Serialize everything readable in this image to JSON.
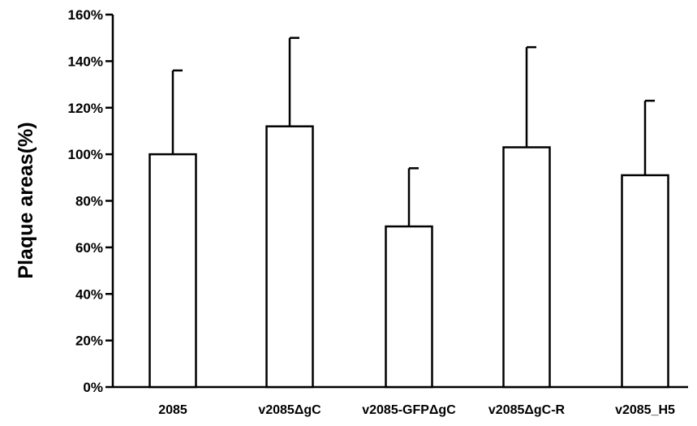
{
  "chart_data": {
    "type": "bar",
    "title": "",
    "xlabel": "",
    "ylabel": "Plaque areas(%)",
    "ylim": [
      0,
      160
    ],
    "yticks": [
      0,
      20,
      40,
      60,
      80,
      100,
      120,
      140,
      160
    ],
    "ytick_labels": [
      "0%",
      "20%",
      "40%",
      "60%",
      "80%",
      "100%",
      "120%",
      "140%",
      "160%"
    ],
    "categories": [
      "2085",
      "v2085ΔgC",
      "v2085-GFPΔgC",
      "v2085ΔgC-R",
      "v2085_H5"
    ],
    "values": [
      100,
      112,
      69,
      103,
      91
    ],
    "errors": [
      36,
      38,
      25,
      43,
      32
    ],
    "grid": false,
    "legend": "none",
    "bar_fill": "#ffffff",
    "bar_stroke": "#000000"
  }
}
